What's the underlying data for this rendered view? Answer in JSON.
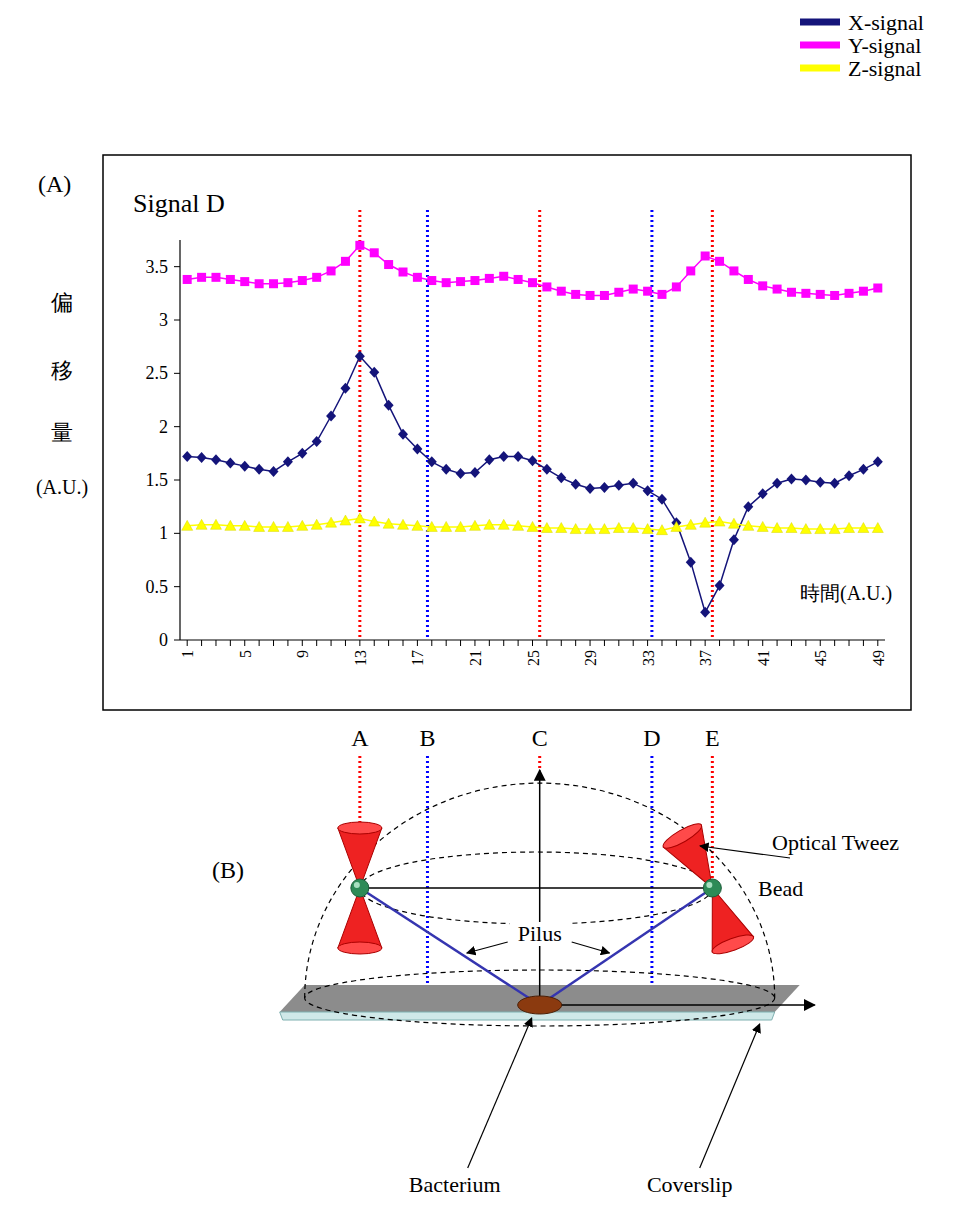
{
  "chart_data": {
    "type": "line",
    "panel_label": "(A)",
    "title": "Signal D",
    "y_label": "偏移量(A.U.)",
    "x_label": "時間(A.U.)",
    "categories": [
      1,
      null,
      null,
      null,
      5,
      null,
      null,
      null,
      9,
      null,
      null,
      null,
      13,
      null,
      null,
      null,
      17,
      null,
      null,
      null,
      21,
      null,
      null,
      null,
      25,
      null,
      null,
      null,
      29,
      null,
      null,
      null,
      33,
      null,
      null,
      null,
      37,
      null,
      null,
      null,
      41,
      null,
      null,
      null,
      45,
      null,
      null,
      null,
      49
    ],
    "series": [
      {
        "name": "X-signal",
        "color": "#14147a",
        "marker": "diamond",
        "values": [
          1.72,
          1.71,
          1.69,
          1.66,
          1.63,
          1.6,
          1.58,
          1.67,
          1.75,
          1.86,
          2.1,
          2.36,
          2.66,
          2.51,
          2.2,
          1.93,
          1.79,
          1.67,
          1.6,
          1.56,
          1.57,
          1.69,
          1.72,
          1.72,
          1.68,
          1.6,
          1.52,
          1.46,
          1.42,
          1.43,
          1.45,
          1.47,
          1.4,
          1.32,
          1.1,
          0.73,
          0.26,
          0.51,
          0.94,
          1.25,
          1.37,
          1.47,
          1.51,
          1.5,
          1.48,
          1.47,
          1.54,
          1.6,
          1.67
        ]
      },
      {
        "name": "Y-signal",
        "color": "#ff00ff",
        "marker": "square",
        "values": [
          3.38,
          3.4,
          3.4,
          3.38,
          3.36,
          3.34,
          3.34,
          3.35,
          3.37,
          3.4,
          3.46,
          3.55,
          3.7,
          3.63,
          3.52,
          3.45,
          3.4,
          3.37,
          3.35,
          3.36,
          3.37,
          3.39,
          3.41,
          3.38,
          3.35,
          3.31,
          3.27,
          3.24,
          3.23,
          3.23,
          3.26,
          3.29,
          3.27,
          3.24,
          3.31,
          3.46,
          3.6,
          3.55,
          3.46,
          3.38,
          3.32,
          3.29,
          3.26,
          3.25,
          3.24,
          3.23,
          3.25,
          3.27,
          3.3
        ]
      },
      {
        "name": "Z-signal",
        "color": "#ffff00",
        "marker": "triangle",
        "values": [
          1.07,
          1.08,
          1.08,
          1.07,
          1.07,
          1.06,
          1.06,
          1.06,
          1.07,
          1.08,
          1.1,
          1.12,
          1.14,
          1.11,
          1.09,
          1.08,
          1.07,
          1.06,
          1.06,
          1.06,
          1.07,
          1.08,
          1.08,
          1.07,
          1.06,
          1.05,
          1.05,
          1.04,
          1.04,
          1.04,
          1.05,
          1.05,
          1.04,
          1.03,
          1.06,
          1.08,
          1.1,
          1.11,
          1.09,
          1.07,
          1.06,
          1.05,
          1.05,
          1.04,
          1.04,
          1.04,
          1.05,
          1.05,
          1.05
        ]
      }
    ],
    "ylim": [
      0,
      3.75
    ],
    "yticks": [
      0,
      0.5,
      1,
      1.5,
      2,
      2.5,
      3,
      3.5
    ],
    "legend": "top-right",
    "annotations": [
      {
        "label": "A",
        "x": 13,
        "color": "#ff0000"
      },
      {
        "label": "B",
        "x": 17.7,
        "color": "#0000ff"
      },
      {
        "label": "C",
        "x": 25.5,
        "color": "#ff0000"
      },
      {
        "label": "D",
        "x": 33.3,
        "color": "#0000ff"
      },
      {
        "label": "E",
        "x": 37.5,
        "color": "#ff0000"
      }
    ]
  },
  "diagram": {
    "panel_label": "(B)",
    "optical_tweezers": "Optical Tweez",
    "bead": "Bead",
    "pilus": "Pilus",
    "bacterium": "Bacterium",
    "coverslip": "Coverslip"
  }
}
